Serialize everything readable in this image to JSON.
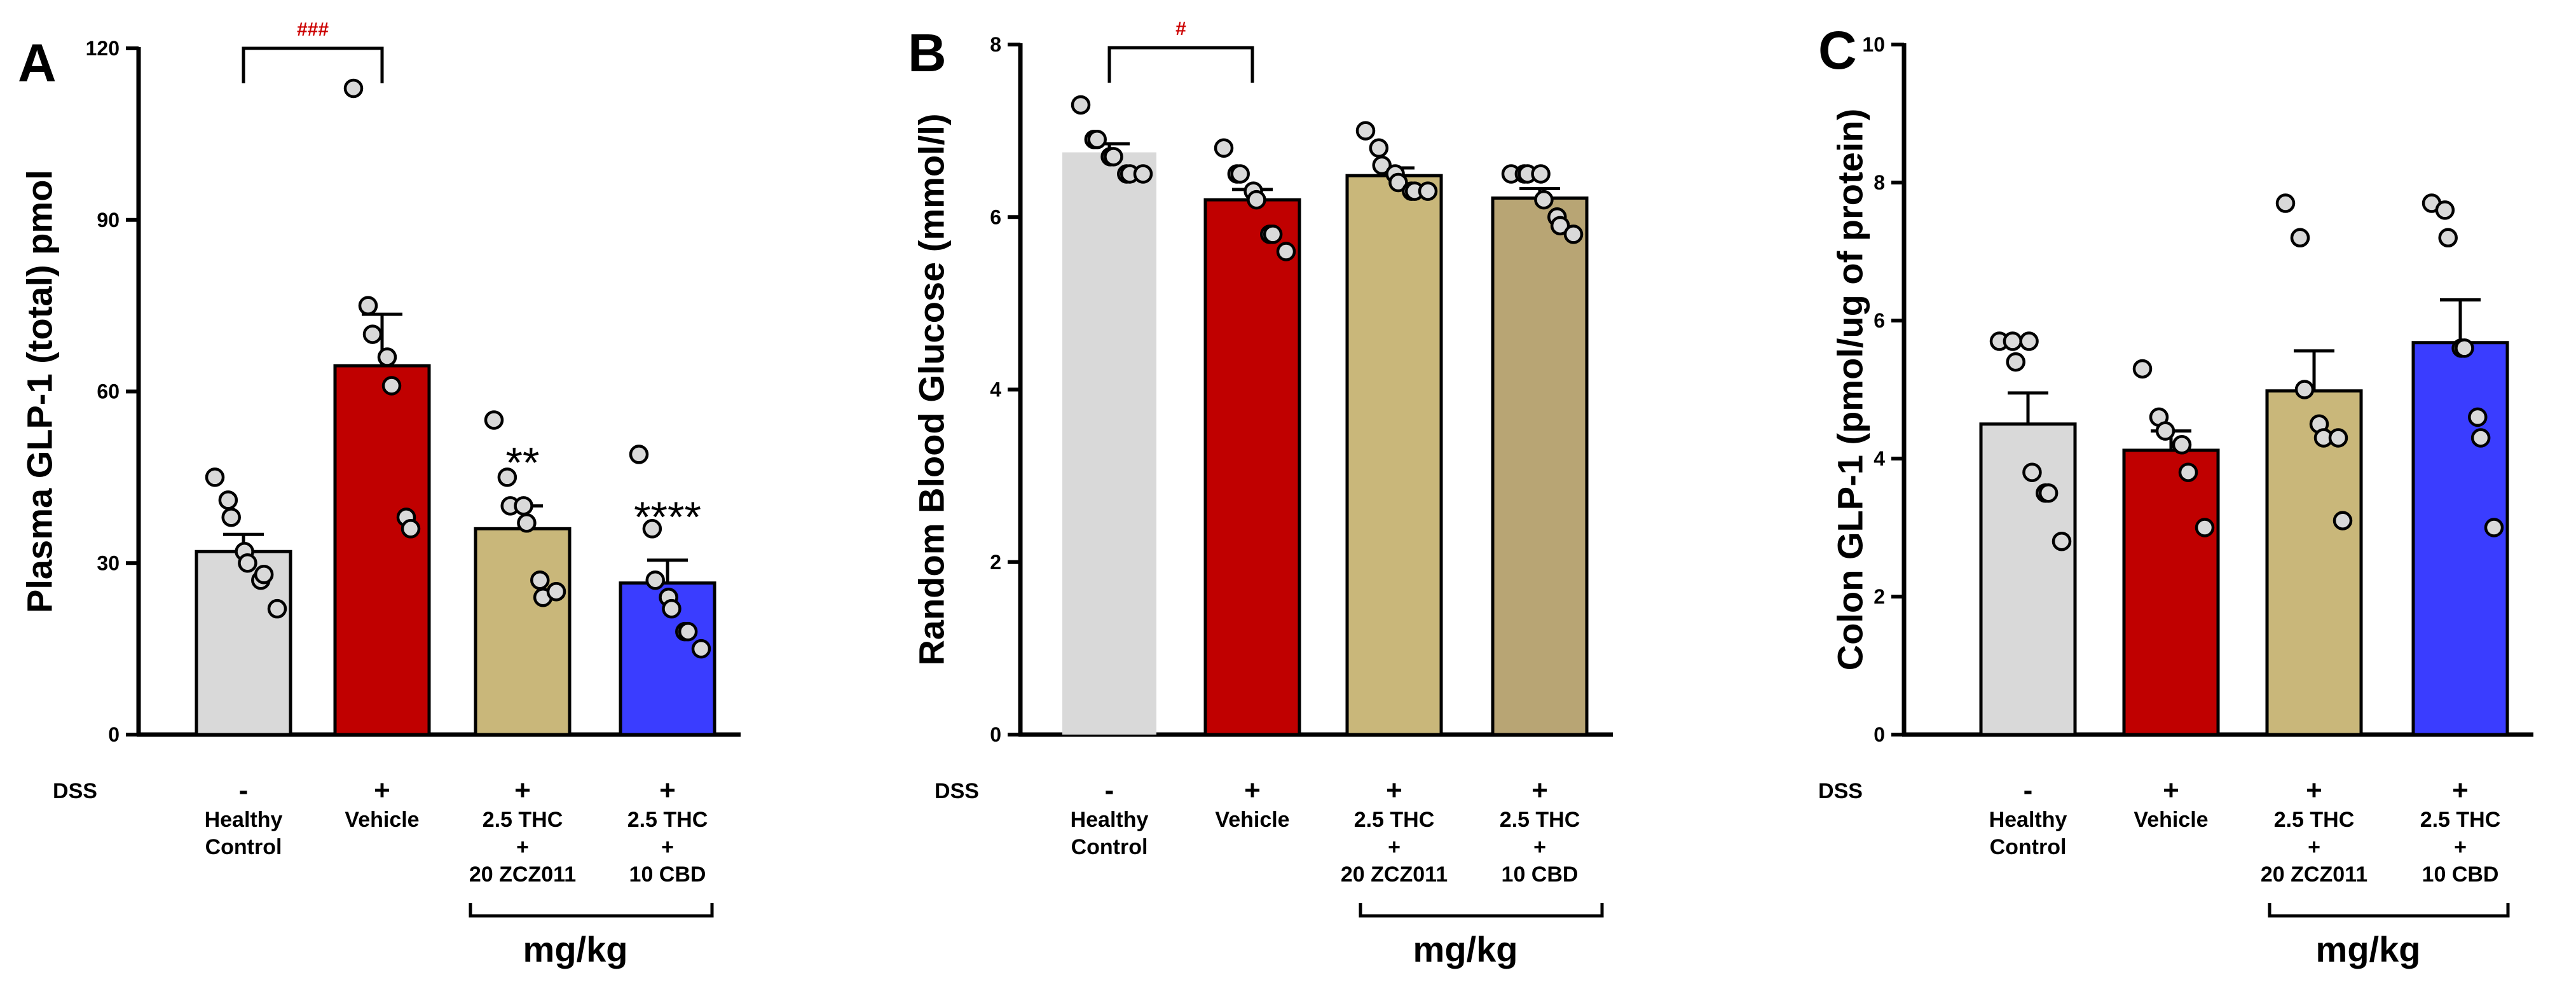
{
  "figure": {
    "dss_label": "DSS",
    "unit_label": "mg/kg"
  },
  "chart_data": [
    {
      "type": "bar",
      "panel": "A",
      "ylabel": "Plasma GLP-1 (total) pmol",
      "ylim": [
        0,
        120
      ],
      "yticks": [
        "0",
        "30",
        "60",
        "90",
        "120"
      ],
      "categories": [
        {
          "lines": [
            "Healthy",
            "Control"
          ],
          "dss": "-"
        },
        {
          "lines": [
            "Vehicle"
          ],
          "dss": "+"
        },
        {
          "lines": [
            "2.5 THC",
            "+",
            "20 ZCZ011"
          ],
          "dss": "+"
        },
        {
          "lines": [
            "2.5 THC",
            "+",
            "10 CBD"
          ],
          "dss": "+"
        }
      ],
      "values": [
        32,
        64.5,
        36,
        26.5
      ],
      "errors": [
        3,
        9,
        4,
        4
      ],
      "colors": [
        "#d9d9d9",
        "#c00000",
        "#c9b77a",
        "#3a3dff"
      ],
      "points": [
        [
          45,
          41,
          38,
          32,
          30,
          27,
          28,
          22
        ],
        [
          113,
          75,
          70,
          66,
          61,
          38,
          36
        ],
        [
          55,
          45,
          40,
          40,
          37,
          27,
          24,
          25
        ],
        [
          49,
          36,
          27,
          24,
          22,
          18,
          18,
          15
        ]
      ],
      "significance": [
        null,
        null,
        "**",
        "****"
      ],
      "comparison": {
        "from": 0,
        "to": 1,
        "label": "###"
      }
    },
    {
      "type": "bar",
      "panel": "B",
      "ylabel": "Random Blood Glucose (mmol/l)",
      "ylim": [
        0,
        8
      ],
      "yticks": [
        "0",
        "2",
        "4",
        "6",
        "8"
      ],
      "categories": [
        {
          "lines": [
            "Healthy",
            "Control"
          ],
          "dss": "-"
        },
        {
          "lines": [
            "Vehicle"
          ],
          "dss": "+"
        },
        {
          "lines": [
            "2.5 THC",
            "+",
            "20 ZCZ011"
          ],
          "dss": "+"
        },
        {
          "lines": [
            "2.5 THC",
            "+",
            "10 CBD"
          ],
          "dss": "+"
        }
      ],
      "values": [
        6.75,
        6.2,
        6.48,
        6.22
      ],
      "errors": [
        0.1,
        0.12,
        0.09,
        0.11
      ],
      "colors": [
        "#d9d9d9",
        "#c00000",
        "#c9b77a",
        "#b8a574"
      ],
      "points": [
        [
          7.3,
          6.9,
          6.9,
          6.7,
          6.7,
          6.5,
          6.5,
          6.5
        ],
        [
          6.8,
          6.5,
          6.5,
          6.3,
          6.2,
          5.8,
          5.8,
          5.6
        ],
        [
          7.0,
          6.8,
          6.6,
          6.5,
          6.4,
          6.3,
          6.3,
          6.3
        ],
        [
          6.5,
          6.5,
          6.5,
          6.5,
          6.2,
          6.0,
          5.9,
          5.8
        ]
      ],
      "significance": [
        null,
        null,
        null,
        null
      ],
      "comparison": {
        "from": 0,
        "to": 1,
        "label": "#"
      }
    },
    {
      "type": "bar",
      "panel": "C",
      "ylabel": "Colon GLP-1 (pmol/ug of protein)",
      "ylim": [
        0,
        10
      ],
      "yticks": [
        "0",
        "2",
        "4",
        "6",
        "8",
        "10"
      ],
      "categories": [
        {
          "lines": [
            "Healthy",
            "Control"
          ],
          "dss": "-"
        },
        {
          "lines": [
            "Vehicle"
          ],
          "dss": "+"
        },
        {
          "lines": [
            "2.5 THC",
            "+",
            "20 ZCZ011"
          ],
          "dss": "+"
        },
        {
          "lines": [
            "2.5 THC",
            "+",
            "10 CBD"
          ],
          "dss": "+"
        }
      ],
      "values": [
        4.5,
        4.12,
        4.98,
        5.68
      ],
      "errors": [
        0.45,
        0.28,
        0.58,
        0.62
      ],
      "colors": [
        "#d9d9d9",
        "#c00000",
        "#c9b77a",
        "#3a3dff"
      ],
      "points": [
        [
          5.7,
          5.7,
          5.4,
          5.7,
          3.8,
          3.5,
          3.5,
          2.8
        ],
        [
          5.3,
          4.6,
          4.4,
          4.2,
          3.8,
          3.0
        ],
        [
          7.7,
          7.2,
          5.0,
          4.5,
          4.3,
          4.3,
          3.1
        ],
        [
          7.7,
          7.6,
          7.2,
          5.6,
          5.6,
          4.6,
          4.3,
          3.0
        ]
      ],
      "significance": [
        null,
        null,
        null,
        null
      ],
      "comparison": null
    }
  ]
}
